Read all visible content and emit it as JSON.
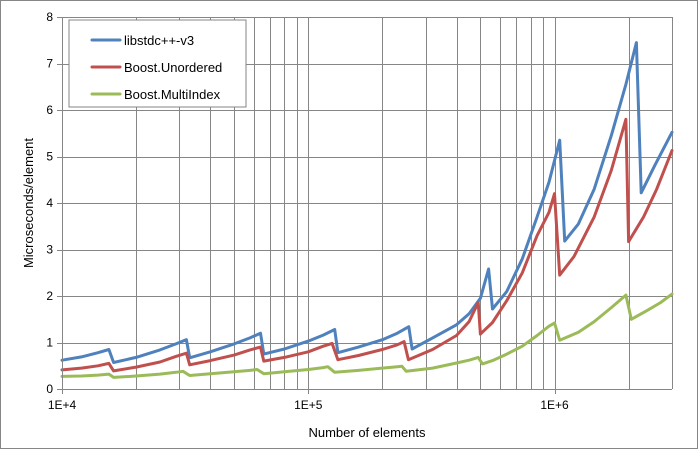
{
  "chart_data": {
    "type": "line",
    "title": "",
    "xlabel": "Number of elements",
    "ylabel": "Microseconds/element",
    "x_scale": "log",
    "xlim": [
      10000,
      3000000
    ],
    "ylim": [
      0,
      8
    ],
    "y_ticks": [
      0,
      1,
      2,
      3,
      4,
      5,
      6,
      7,
      8
    ],
    "y_tick_labels": [
      "0",
      "1",
      "2",
      "3",
      "4",
      "5",
      "6",
      "7",
      "8"
    ],
    "x_major_ticks": [
      10000,
      100000,
      1000000
    ],
    "x_tick_labels": [
      "1E+4",
      "1E+5",
      "1E+6"
    ],
    "grid": "major and minor (log)",
    "legend_position": "top-left",
    "series": [
      {
        "name": "libstdc++-v3",
        "color": "#4F81BD",
        "points": [
          [
            10000,
            0.62
          ],
          [
            12000,
            0.69
          ],
          [
            14000,
            0.78
          ],
          [
            15500,
            0.85
          ],
          [
            16200,
            0.57
          ],
          [
            20000,
            0.68
          ],
          [
            25000,
            0.84
          ],
          [
            29000,
            0.97
          ],
          [
            32000,
            1.06
          ],
          [
            33000,
            0.67
          ],
          [
            40000,
            0.8
          ],
          [
            50000,
            0.97
          ],
          [
            58000,
            1.1
          ],
          [
            64000,
            1.2
          ],
          [
            66000,
            0.75
          ],
          [
            80000,
            0.86
          ],
          [
            100000,
            1.03
          ],
          [
            115000,
            1.16
          ],
          [
            128000,
            1.28
          ],
          [
            132000,
            0.78
          ],
          [
            160000,
            0.9
          ],
          [
            200000,
            1.06
          ],
          [
            230000,
            1.2
          ],
          [
            256000,
            1.34
          ],
          [
            264000,
            0.86
          ],
          [
            320000,
            1.1
          ],
          [
            400000,
            1.38
          ],
          [
            450000,
            1.62
          ],
          [
            500000,
            1.95
          ],
          [
            540000,
            2.58
          ],
          [
            560000,
            1.72
          ],
          [
            640000,
            2.1
          ],
          [
            740000,
            2.8
          ],
          [
            850000,
            3.7
          ],
          [
            950000,
            4.45
          ],
          [
            1050000,
            5.35
          ],
          [
            1100000,
            3.18
          ],
          [
            1250000,
            3.55
          ],
          [
            1450000,
            4.3
          ],
          [
            1700000,
            5.45
          ],
          [
            1950000,
            6.55
          ],
          [
            2150000,
            7.45
          ],
          [
            2250000,
            4.22
          ],
          [
            2550000,
            4.8
          ],
          [
            3000000,
            5.52
          ]
        ]
      },
      {
        "name": "Boost.Unordered",
        "color": "#C0504D",
        "points": [
          [
            10000,
            0.41
          ],
          [
            12000,
            0.45
          ],
          [
            14000,
            0.5
          ],
          [
            15500,
            0.55
          ],
          [
            16200,
            0.39
          ],
          [
            20000,
            0.47
          ],
          [
            25000,
            0.58
          ],
          [
            29000,
            0.7
          ],
          [
            32000,
            0.77
          ],
          [
            33000,
            0.52
          ],
          [
            40000,
            0.61
          ],
          [
            50000,
            0.73
          ],
          [
            58000,
            0.84
          ],
          [
            64000,
            0.9
          ],
          [
            66000,
            0.6
          ],
          [
            80000,
            0.68
          ],
          [
            100000,
            0.8
          ],
          [
            115000,
            0.92
          ],
          [
            125000,
            0.98
          ],
          [
            132000,
            0.63
          ],
          [
            160000,
            0.72
          ],
          [
            200000,
            0.85
          ],
          [
            230000,
            0.95
          ],
          [
            245000,
            1.02
          ],
          [
            255000,
            0.63
          ],
          [
            320000,
            0.85
          ],
          [
            400000,
            1.15
          ],
          [
            450000,
            1.45
          ],
          [
            490000,
            1.86
          ],
          [
            500000,
            1.18
          ],
          [
            560000,
            1.43
          ],
          [
            640000,
            1.9
          ],
          [
            740000,
            2.5
          ],
          [
            850000,
            3.3
          ],
          [
            950000,
            3.8
          ],
          [
            1000000,
            4.2
          ],
          [
            1050000,
            2.45
          ],
          [
            1200000,
            2.85
          ],
          [
            1450000,
            3.7
          ],
          [
            1700000,
            4.7
          ],
          [
            1950000,
            5.8
          ],
          [
            2000000,
            3.17
          ],
          [
            2300000,
            3.7
          ],
          [
            2600000,
            4.3
          ],
          [
            3000000,
            5.13
          ]
        ]
      },
      {
        "name": "Boost.MultiIndex",
        "color": "#9BBB59",
        "points": [
          [
            10000,
            0.27
          ],
          [
            12000,
            0.28
          ],
          [
            14000,
            0.3
          ],
          [
            15500,
            0.32
          ],
          [
            16200,
            0.25
          ],
          [
            20000,
            0.28
          ],
          [
            25000,
            0.32
          ],
          [
            29000,
            0.36
          ],
          [
            31000,
            0.38
          ],
          [
            33000,
            0.29
          ],
          [
            40000,
            0.33
          ],
          [
            50000,
            0.37
          ],
          [
            58000,
            0.4
          ],
          [
            62000,
            0.42
          ],
          [
            66000,
            0.33
          ],
          [
            80000,
            0.37
          ],
          [
            100000,
            0.42
          ],
          [
            115000,
            0.46
          ],
          [
            120000,
            0.48
          ],
          [
            128000,
            0.36
          ],
          [
            160000,
            0.4
          ],
          [
            200000,
            0.45
          ],
          [
            230000,
            0.48
          ],
          [
            240000,
            0.49
          ],
          [
            250000,
            0.38
          ],
          [
            320000,
            0.45
          ],
          [
            400000,
            0.56
          ],
          [
            450000,
            0.62
          ],
          [
            490000,
            0.68
          ],
          [
            510000,
            0.54
          ],
          [
            560000,
            0.61
          ],
          [
            640000,
            0.75
          ],
          [
            740000,
            0.92
          ],
          [
            850000,
            1.15
          ],
          [
            950000,
            1.35
          ],
          [
            1000000,
            1.42
          ],
          [
            1050000,
            1.05
          ],
          [
            1250000,
            1.22
          ],
          [
            1450000,
            1.45
          ],
          [
            1700000,
            1.75
          ],
          [
            1950000,
            2.02
          ],
          [
            2050000,
            1.5
          ],
          [
            2400000,
            1.7
          ],
          [
            2700000,
            1.86
          ],
          [
            3000000,
            2.04
          ]
        ]
      }
    ]
  }
}
